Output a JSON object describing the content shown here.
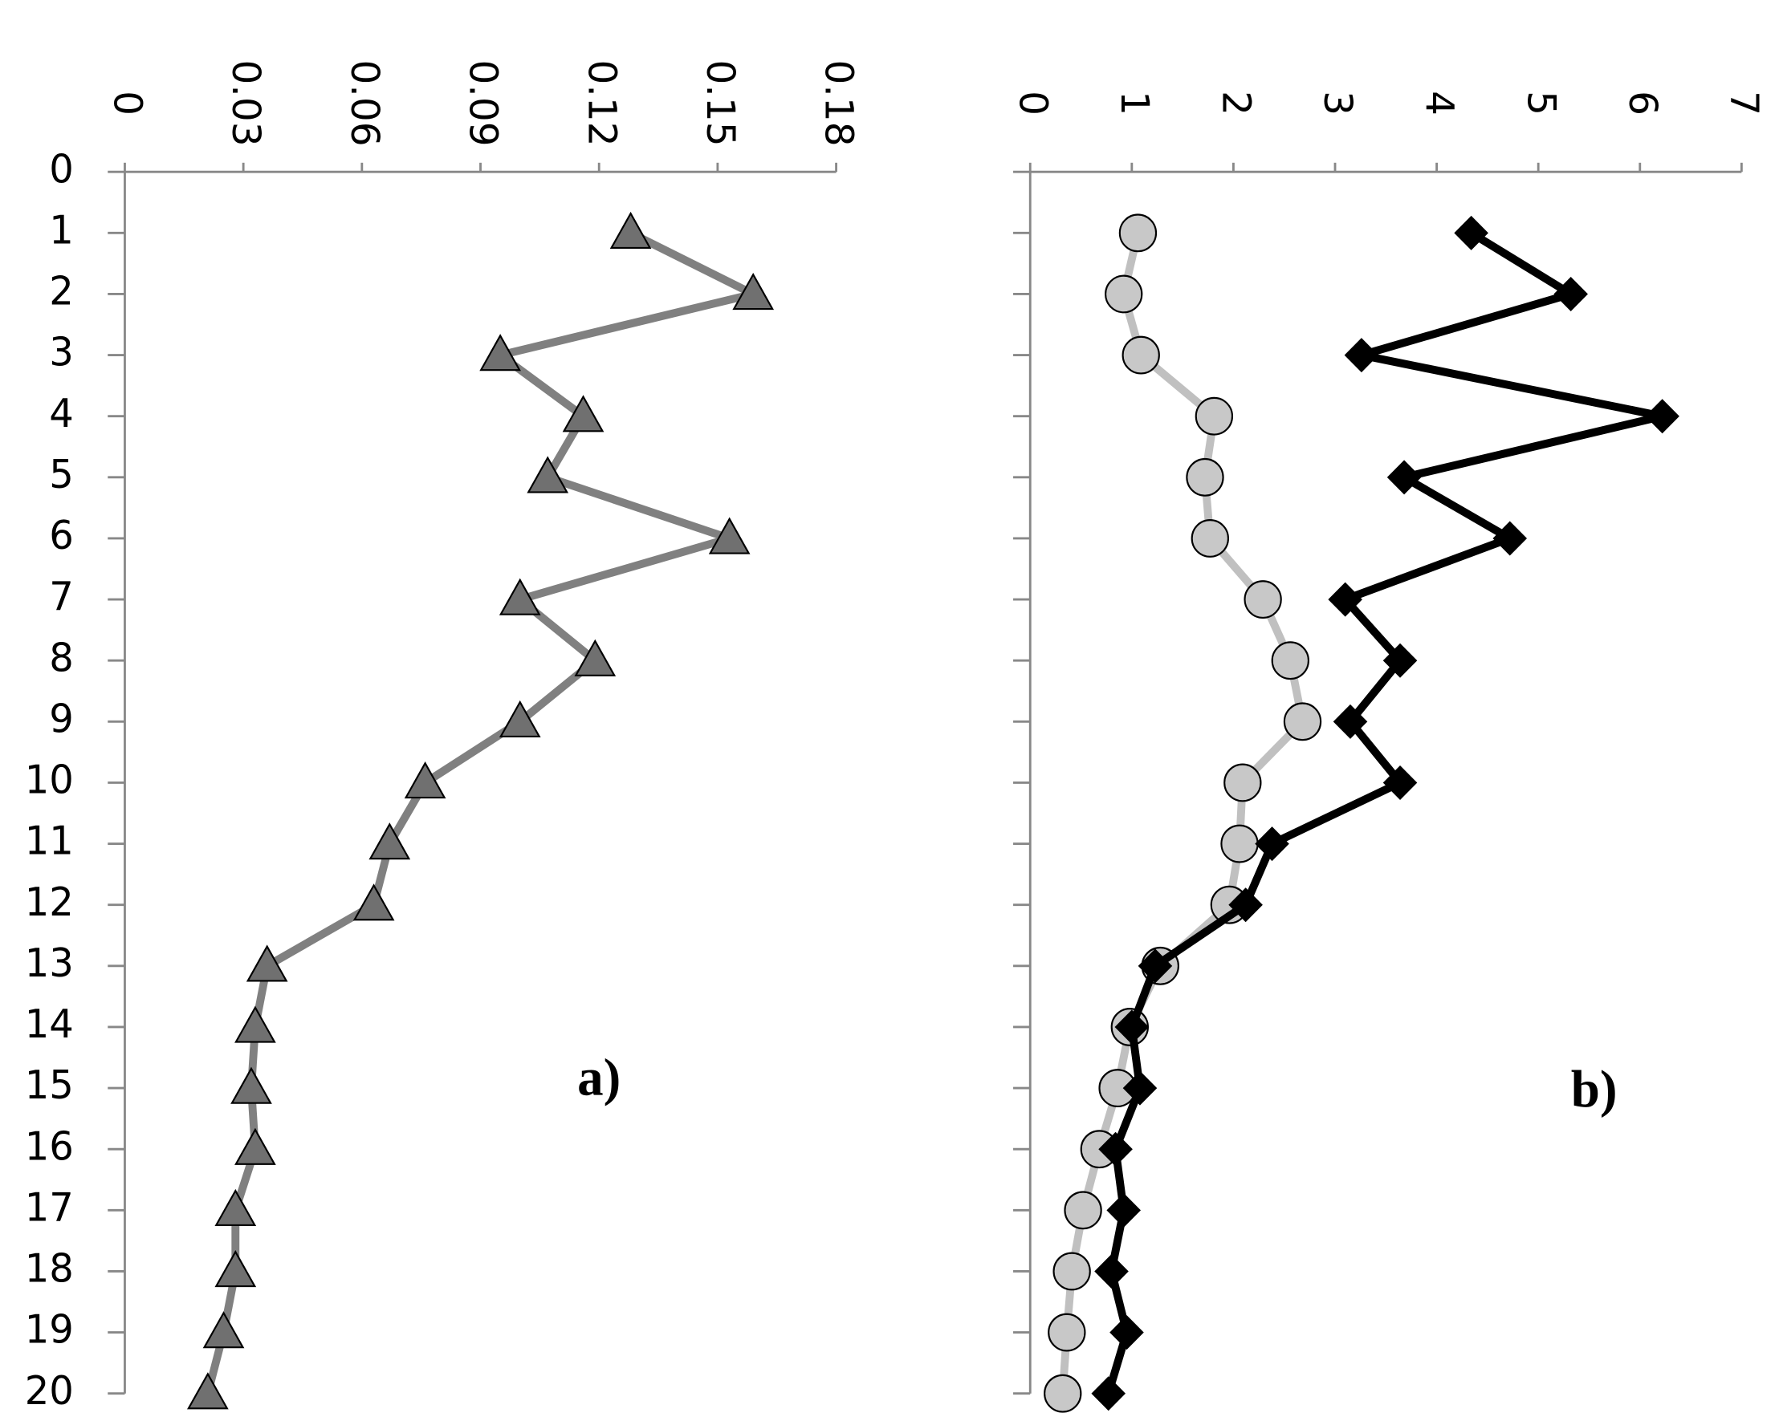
{
  "chart_data": [
    {
      "type": "line",
      "label": "a)",
      "categories": [
        0,
        1,
        2,
        3,
        4,
        5,
        6,
        7,
        8,
        9,
        10,
        11,
        12,
        13,
        14,
        15,
        16,
        17,
        18,
        19,
        20
      ],
      "series": [
        {
          "color": "#808080",
          "marker": "triangle",
          "marker_color": "#707070",
          "values": [
            null,
            0.128,
            0.159,
            0.095,
            0.116,
            0.107,
            0.153,
            0.1,
            0.119,
            0.1,
            0.076,
            0.067,
            0.063,
            0.036,
            0.033,
            0.032,
            0.033,
            0.028,
            0.028,
            0.025,
            0.021
          ]
        }
      ],
      "xlim": [
        0,
        0.18
      ],
      "xticks": [
        0,
        0.03,
        0.06,
        0.09,
        0.12,
        0.15,
        0.18
      ]
    },
    {
      "type": "line",
      "label": "b)",
      "categories": [
        null,
        null,
        null,
        null,
        null,
        null,
        null,
        null,
        null,
        null,
        null,
        null,
        null,
        null,
        null,
        null,
        null,
        null,
        null,
        null,
        null
      ],
      "series": [
        {
          "color": "#c0c0c0",
          "marker": "circle",
          "marker_color": "#c8c8c8",
          "values": [
            null,
            1.06,
            0.92,
            1.09,
            1.81,
            1.72,
            1.77,
            2.29,
            2.56,
            2.68,
            2.09,
            2.06,
            1.96,
            1.28,
            0.98,
            0.86,
            0.68,
            0.52,
            0.41,
            0.36,
            0.32
          ]
        },
        {
          "color": "#000000",
          "marker": "diamond",
          "marker_color": "#000000",
          "values": [
            null,
            4.34,
            5.32,
            3.26,
            6.22,
            3.68,
            4.72,
            3.1,
            3.64,
            3.15,
            3.64,
            2.38,
            2.12,
            1.23,
            1.0,
            1.08,
            0.84,
            0.92,
            0.8,
            0.95,
            0.77
          ]
        }
      ],
      "xlim": [
        0,
        7
      ],
      "xticks": [
        0,
        1,
        2,
        3,
        4,
        5,
        6,
        7
      ]
    }
  ]
}
